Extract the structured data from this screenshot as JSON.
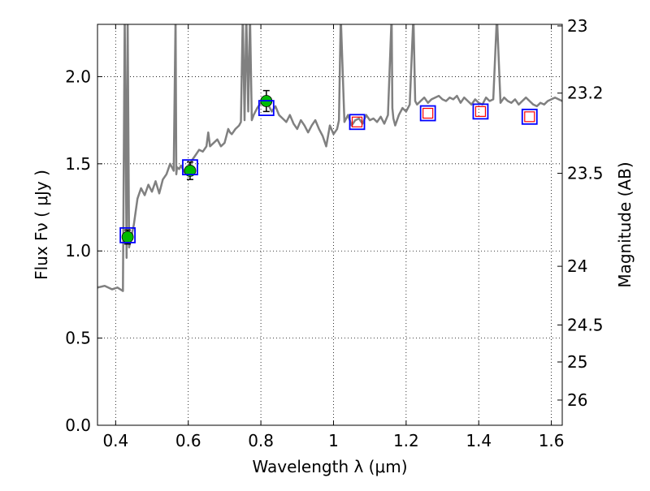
{
  "chart_data": {
    "type": "scatter",
    "xlabel": "Wavelength  λ (μm)",
    "ylabel": "Flux  Fν  ( μJy )",
    "ylabel_right": "Magnitude (AB)",
    "xlim": [
      0.35,
      1.63
    ],
    "ylim": [
      0.0,
      2.3
    ],
    "grid": true,
    "x_ticks": [
      0.4,
      0.6,
      0.8,
      1.0,
      1.2,
      1.4,
      1.6
    ],
    "x_tick_labels": [
      "0.4",
      "0.6",
      "0.8",
      "1",
      "1.2",
      "1.4",
      "1.6"
    ],
    "y_ticks": [
      0.0,
      0.5,
      1.0,
      1.5,
      2.0
    ],
    "y_tick_labels": [
      "0.0",
      "0.5",
      "1.0",
      "1.5",
      "2.0"
    ],
    "right_ticks_mag": [
      23,
      23.2,
      23.5,
      24,
      24.5,
      25,
      26
    ],
    "right_tick_labels": [
      "23",
      "23.2",
      "23.5",
      "24",
      "24.5",
      "25",
      "26"
    ],
    "colors": {
      "spectrum": "#808080",
      "observed": "#00bb00",
      "model_box": "#0000ff",
      "upper_box": "#ff0000",
      "errorbar": "#000000"
    },
    "series": [
      {
        "kind": "spectrum",
        "x": [
          0.35,
          0.37,
          0.39,
          0.405,
          0.42,
          0.425,
          0.43,
          0.433,
          0.437,
          0.44,
          0.445,
          0.45,
          0.46,
          0.47,
          0.48,
          0.49,
          0.5,
          0.51,
          0.52,
          0.53,
          0.54,
          0.55,
          0.56,
          0.565,
          0.567,
          0.569,
          0.575,
          0.58,
          0.59,
          0.6,
          0.61,
          0.62,
          0.63,
          0.64,
          0.65,
          0.655,
          0.66,
          0.67,
          0.68,
          0.69,
          0.7,
          0.71,
          0.715,
          0.72,
          0.73,
          0.74,
          0.745,
          0.75,
          0.755,
          0.76,
          0.765,
          0.77,
          0.775,
          0.78,
          0.79,
          0.8,
          0.81,
          0.82,
          0.83,
          0.84,
          0.85,
          0.86,
          0.87,
          0.88,
          0.89,
          0.9,
          0.91,
          0.92,
          0.93,
          0.94,
          0.95,
          0.96,
          0.97,
          0.98,
          0.99,
          1.0,
          1.01,
          1.015,
          1.02,
          1.03,
          1.04,
          1.05,
          1.06,
          1.07,
          1.08,
          1.09,
          1.1,
          1.11,
          1.12,
          1.13,
          1.14,
          1.15,
          1.16,
          1.162,
          1.165,
          1.17,
          1.18,
          1.19,
          1.2,
          1.21,
          1.22,
          1.225,
          1.23,
          1.24,
          1.25,
          1.26,
          1.27,
          1.28,
          1.29,
          1.3,
          1.31,
          1.32,
          1.33,
          1.34,
          1.35,
          1.36,
          1.37,
          1.38,
          1.39,
          1.4,
          1.41,
          1.42,
          1.43,
          1.44,
          1.45,
          1.46,
          1.47,
          1.48,
          1.49,
          1.5,
          1.51,
          1.52,
          1.53,
          1.54,
          1.55,
          1.56,
          1.57,
          1.58,
          1.59,
          1.6,
          1.61,
          1.63
        ],
        "y": [
          0.79,
          0.8,
          0.78,
          0.79,
          0.77,
          2.35,
          0.96,
          2.35,
          1.02,
          1.05,
          1.1,
          1.15,
          1.3,
          1.36,
          1.32,
          1.38,
          1.34,
          1.4,
          1.33,
          1.41,
          1.44,
          1.5,
          1.46,
          2.35,
          1.44,
          1.48,
          1.47,
          1.49,
          1.45,
          1.47,
          1.52,
          1.55,
          1.58,
          1.57,
          1.6,
          1.68,
          1.6,
          1.62,
          1.64,
          1.6,
          1.62,
          1.7,
          1.68,
          1.67,
          1.7,
          1.72,
          1.74,
          2.35,
          1.75,
          2.35,
          1.8,
          2.35,
          1.75,
          1.78,
          1.82,
          1.85,
          1.88,
          1.84,
          1.8,
          1.83,
          1.78,
          1.76,
          1.74,
          1.78,
          1.73,
          1.7,
          1.75,
          1.72,
          1.68,
          1.72,
          1.75,
          1.7,
          1.66,
          1.6,
          1.72,
          1.67,
          1.7,
          1.75,
          2.35,
          1.74,
          1.78,
          1.72,
          1.75,
          1.76,
          1.73,
          1.78,
          1.75,
          1.76,
          1.74,
          1.77,
          1.73,
          1.78,
          2.35,
          1.82,
          1.76,
          1.72,
          1.78,
          1.82,
          1.8,
          1.84,
          2.35,
          1.86,
          1.84,
          1.86,
          1.88,
          1.85,
          1.87,
          1.88,
          1.89,
          1.87,
          1.86,
          1.88,
          1.87,
          1.89,
          1.85,
          1.88,
          1.86,
          1.84,
          1.87,
          1.85,
          1.84,
          1.88,
          1.86,
          1.87,
          2.35,
          1.85,
          1.88,
          1.86,
          1.85,
          1.87,
          1.84,
          1.86,
          1.88,
          1.86,
          1.84,
          1.83,
          1.85,
          1.84,
          1.86,
          1.87,
          1.88,
          1.86
        ]
      },
      {
        "kind": "observed",
        "x": [
          0.433,
          0.605,
          0.815
        ],
        "y": [
          1.08,
          1.46,
          1.86
        ],
        "yerr": [
          0.04,
          0.05,
          0.06
        ]
      },
      {
        "kind": "model",
        "x": [
          0.433,
          0.605,
          0.815,
          1.065,
          1.26,
          1.405,
          1.54
        ],
        "y": [
          1.09,
          1.48,
          1.82,
          1.74,
          1.79,
          1.8,
          1.77
        ]
      },
      {
        "kind": "upper",
        "x": [
          1.065,
          1.26,
          1.405,
          1.54
        ],
        "y": [
          1.74,
          1.79,
          1.8,
          1.77
        ]
      }
    ]
  }
}
